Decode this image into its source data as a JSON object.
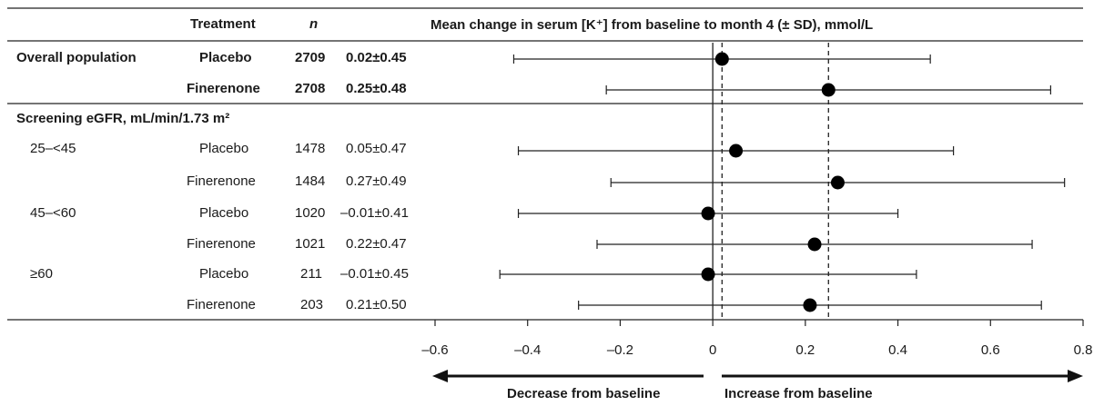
{
  "table": {
    "headers": {
      "treatment": "Treatment",
      "n": "n",
      "measure": "Mean change in serum [K⁺] from baseline to month 4 (± SD), mmol/L"
    },
    "section_label": "Screening eGFR, mL/min/1.73 m²",
    "rows": [
      {
        "group": "Overall population",
        "treatment": "Placebo",
        "n": "2709",
        "value": "0.02±0.45"
      },
      {
        "group": "",
        "treatment": "Finerenone",
        "n": "2708",
        "value": "0.25±0.48"
      },
      {
        "group": "25–<45",
        "treatment": "Placebo",
        "n": "1478",
        "value": "0.05±0.47"
      },
      {
        "group": "",
        "treatment": "Finerenone",
        "n": "1484",
        "value": "0.27±0.49"
      },
      {
        "group": "45–<60",
        "treatment": "Placebo",
        "n": "1020",
        "value": "–0.01±0.41"
      },
      {
        "group": "",
        "treatment": "Finerenone",
        "n": "1021",
        "value": "0.22±0.47"
      },
      {
        "group": "≥60",
        "treatment": "Placebo",
        "n": "211",
        "value": "–0.01±0.45"
      },
      {
        "group": "",
        "treatment": "Finerenone",
        "n": "203",
        "value": "0.21±0.50"
      }
    ]
  },
  "axis": {
    "decrease_label": "Decrease from baseline",
    "increase_label": "Increase from baseline"
  },
  "chart_data": {
    "type": "scatter",
    "xlim": [
      -0.6,
      0.8
    ],
    "xticks": [
      -0.6,
      -0.4,
      -0.2,
      0,
      0.2,
      0.4,
      0.6,
      0.8
    ],
    "xtick_labels": [
      "–0.6",
      "–0.4",
      "–0.2",
      "0",
      "0.2",
      "0.4",
      "0.6",
      "0.8"
    ],
    "reference_lines": [
      0,
      0.02,
      0.25
    ],
    "points": [
      {
        "mean": 0.02,
        "sd": 0.45
      },
      {
        "mean": 0.25,
        "sd": 0.48
      },
      {
        "mean": 0.05,
        "sd": 0.47
      },
      {
        "mean": 0.27,
        "sd": 0.49
      },
      {
        "mean": -0.01,
        "sd": 0.41
      },
      {
        "mean": 0.22,
        "sd": 0.47
      },
      {
        "mean": -0.01,
        "sd": 0.45
      },
      {
        "mean": 0.21,
        "sd": 0.5
      }
    ]
  }
}
